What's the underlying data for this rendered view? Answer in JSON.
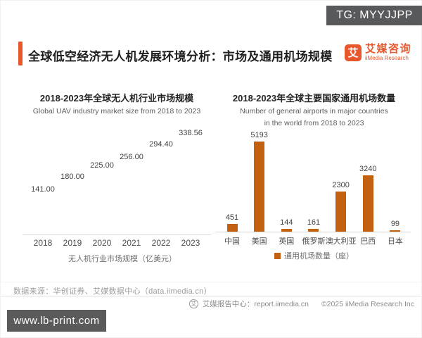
{
  "overlay": {
    "tg_label": "TG: MYYJJPP",
    "watermark": "www.lb-print.com"
  },
  "header": {
    "title": "全球低空经济无人机发展环境分析：市场及通用机场规模",
    "logo": {
      "mark": "艾",
      "name_cn": "艾媒咨询",
      "name_en": "iiMedia Research"
    }
  },
  "colors": {
    "accent": "#E8572B",
    "bar": "#C2610F",
    "icon_body": "#DD9A63",
    "icon_dark": "#C97B3C"
  },
  "chart_data": [
    {
      "type": "bar",
      "style": "pictogram",
      "title": "2018-2023年全球无人机行业市场规模",
      "subtitle": "Global UAV industry market size from 2018 to 2023",
      "categories": [
        "2018",
        "2019",
        "2020",
        "2021",
        "2022",
        "2023"
      ],
      "values": [
        141.0,
        180.0,
        225.0,
        256.0,
        294.4,
        338.56
      ],
      "value_labels": [
        "141.00",
        "180.00",
        "225.00",
        "256.00",
        "294.40",
        "338.56"
      ],
      "legend": "无人机行业市场规模（亿美元）",
      "icon": "drone-icon",
      "icon_unit": 28.2,
      "ylabel": "亿美元",
      "grid": false
    },
    {
      "type": "bar",
      "title": "2018-2023年全球主要国家通用机场数量",
      "subtitle_lines": [
        "Number of general airports in major countries",
        "in the world from 2018 to 2023"
      ],
      "categories": [
        "中国",
        "美国",
        "英国",
        "俄罗斯",
        "澳大利亚",
        "巴西",
        "日本"
      ],
      "values": [
        451,
        5193,
        144,
        161,
        2300,
        3240,
        99
      ],
      "value_labels": [
        "451",
        "5193",
        "144",
        "161",
        "2300",
        "3240",
        "99"
      ],
      "legend": "通用机场数量（座）",
      "ylim": [
        0,
        5193
      ],
      "grid": false
    }
  ],
  "footer": {
    "source": "数据来源：华创证券、艾媒数据中心（data.iimedia.cn）",
    "report_center": "艾媒报告中心：report.iimedia.cn",
    "copyright": "©2025 iiMedia Research Inc",
    "badge_glyph": "艾"
  }
}
